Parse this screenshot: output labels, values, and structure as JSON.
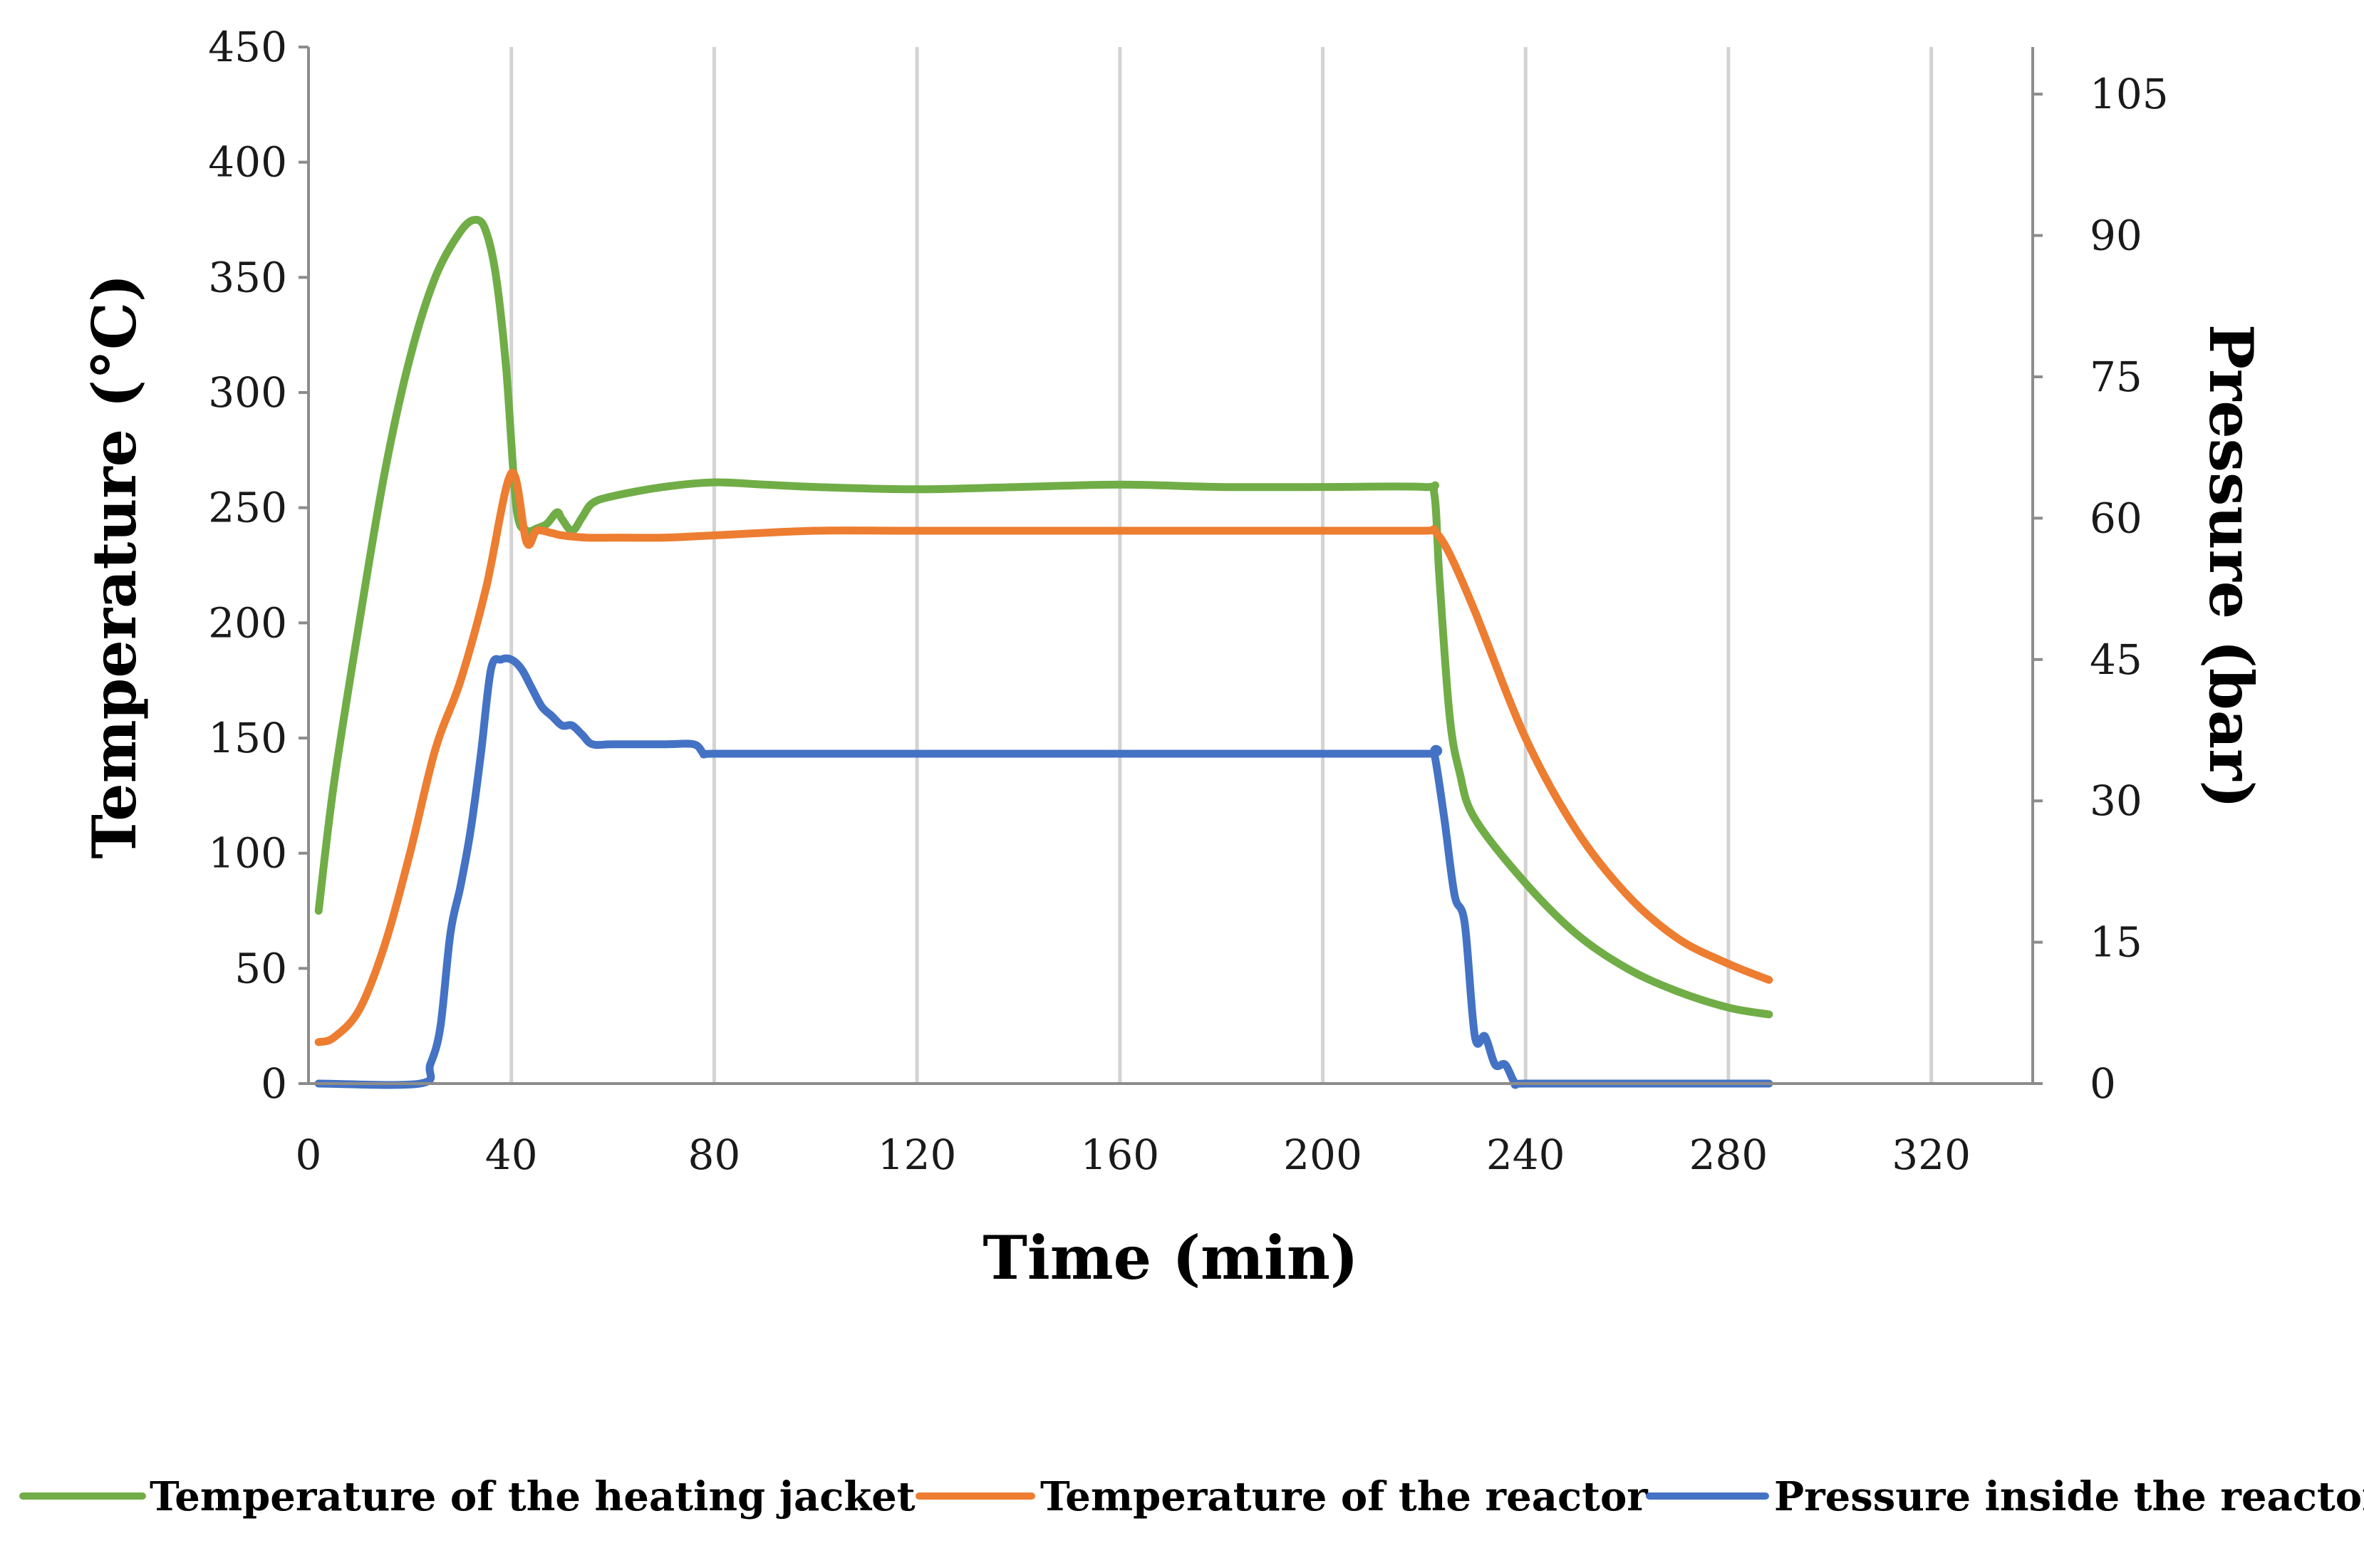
{
  "chart_data": {
    "type": "line",
    "title": "",
    "xlabel": "Time (min)",
    "ylabel": "Temperature (°C)",
    "y2label": "Pressure (bar)",
    "xlim": [
      0,
      340
    ],
    "ylim": [
      0,
      450
    ],
    "y2lim": [
      0,
      110
    ],
    "x_ticks": [
      0,
      40,
      80,
      120,
      160,
      200,
      240,
      280,
      320
    ],
    "y_ticks": [
      0,
      50,
      100,
      150,
      200,
      250,
      300,
      350,
      400,
      450
    ],
    "y2_ticks": [
      0,
      15,
      30,
      45,
      60,
      75,
      90,
      105
    ],
    "grid": "vertical",
    "legend_position": "bottom",
    "series": [
      {
        "name": "Temperature of the heating jacket",
        "axis": "left",
        "color": "#70AD47",
        "x": [
          2,
          5,
          10,
          15,
          20,
          25,
          30,
          33,
          35,
          37,
          39,
          41,
          43,
          44,
          45,
          47,
          49,
          50,
          52,
          54,
          56,
          60,
          70,
          80,
          90,
          100,
          120,
          140,
          160,
          180,
          200,
          220,
          222,
          223,
          225,
          227,
          230,
          240,
          250,
          260,
          270,
          280,
          288
        ],
        "y": [
          75,
          130,
          200,
          265,
          315,
          350,
          370,
          375,
          370,
          350,
          310,
          250,
          240,
          240,
          241,
          243,
          248,
          245,
          240,
          246,
          252,
          255,
          259,
          261,
          260,
          259,
          258,
          259,
          260,
          259,
          259,
          259,
          256,
          220,
          160,
          135,
          115,
          87,
          65,
          50,
          40,
          33,
          30
        ]
      },
      {
        "name": "Temperature of the reactor",
        "axis": "left",
        "color": "#ED7D31",
        "x": [
          2,
          5,
          10,
          15,
          20,
          25,
          30,
          35,
          40,
          43,
          45,
          48,
          50,
          55,
          60,
          70,
          80,
          100,
          120,
          160,
          200,
          220,
          222,
          225,
          230,
          240,
          250,
          260,
          270,
          280,
          288
        ],
        "y": [
          18,
          20,
          32,
          60,
          100,
          145,
          175,
          215,
          265,
          235,
          240,
          239,
          238,
          237,
          237,
          237,
          238,
          240,
          240,
          240,
          240,
          240,
          240,
          230,
          205,
          150,
          110,
          82,
          63,
          52,
          45
        ]
      },
      {
        "name": "Pressure inside the reactor",
        "axis": "right",
        "color": "#4472C4",
        "x": [
          2,
          22,
          24,
          26,
          28,
          30,
          32,
          34,
          36,
          38,
          40,
          42,
          44,
          46,
          48,
          50,
          52,
          54,
          56,
          60,
          70,
          76,
          78,
          80,
          100,
          150,
          200,
          221,
          222,
          224,
          226,
          228,
          230,
          232,
          234,
          236,
          238,
          240,
          260,
          288
        ],
        "y": [
          0,
          0,
          2,
          6,
          16,
          21,
          27,
          35,
          44,
          45,
          45,
          44,
          42,
          40,
          39,
          38,
          38,
          37,
          36,
          36,
          36,
          36,
          35,
          35,
          35,
          35,
          35,
          35,
          35,
          28,
          20,
          17,
          5,
          5,
          2,
          2,
          0,
          0,
          0,
          0
        ]
      }
    ]
  }
}
